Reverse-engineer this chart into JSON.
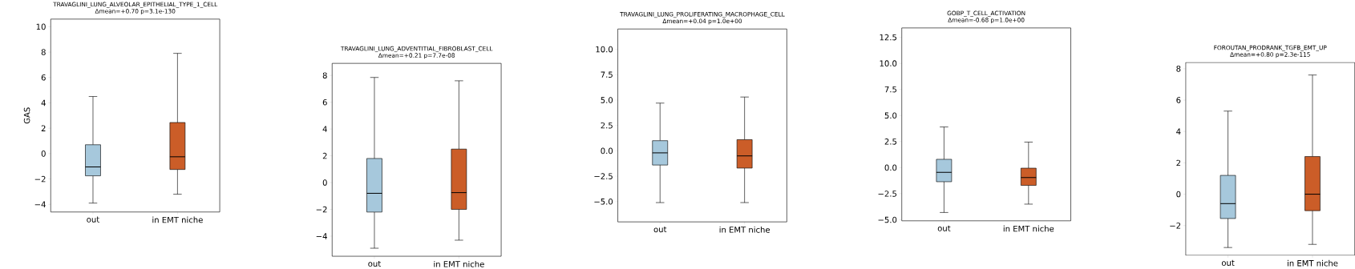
{
  "chart_data": [
    {
      "type": "box",
      "title": "TRAVAGLINI_LUNG_ALVEOLAR_EPITHELIAL_TYPE_1_CELL",
      "subtitle": "Δmean=+0.70  p=3.1e-130",
      "ylabel": "GAS",
      "categories": [
        "out",
        "in EMT niche"
      ],
      "colors": [
        "#a6c8dc",
        "#cb5d28"
      ],
      "ylim": [
        -4.6,
        10.6
      ],
      "yticks": [
        {
          "value": -4,
          "label": "−4"
        },
        {
          "value": -2,
          "label": "−2"
        },
        0,
        2,
        4,
        6,
        8,
        10
      ],
      "boxes": [
        {
          "low": -3.9,
          "q1": -1.75,
          "median": -1.05,
          "q3": 0.7,
          "high": 4.5
        },
        {
          "low": -3.2,
          "q1": -1.25,
          "median": -0.25,
          "q3": 2.45,
          "high": 7.9
        }
      ]
    },
    {
      "type": "box",
      "title": "TRAVAGLINI_LUNG_ADVENTITIAL_FIBROBLAST_CELL",
      "subtitle": "Δmean=+0.21  p=7.7e-08",
      "categories": [
        "out",
        "in EMT niche"
      ],
      "colors": [
        "#a6c8dc",
        "#cb5d28"
      ],
      "ylim": [
        -5.5,
        8.9
      ],
      "yticks": [
        {
          "value": -4,
          "label": "−4"
        },
        {
          "value": -2,
          "label": "−2"
        },
        0,
        2,
        4,
        6,
        8
      ],
      "boxes": [
        {
          "low": -4.9,
          "q1": -2.2,
          "median": -0.8,
          "q3": 1.8,
          "high": 7.85
        },
        {
          "low": -4.3,
          "q1": -2.0,
          "median": -0.75,
          "q3": 2.5,
          "high": 7.6
        }
      ]
    },
    {
      "type": "box",
      "title": "TRAVAGLINI_LUNG_PROLIFERATING_MACROPHAGE_CELL",
      "subtitle": "Δmean=+0.04  p=1.0e+00",
      "categories": [
        "out",
        "in EMT niche"
      ],
      "colors": [
        "#a6c8dc",
        "#cb5d28"
      ],
      "ylim": [
        -7.0,
        12.0
      ],
      "yticks": [
        {
          "value": -5,
          "label": "−5.0"
        },
        {
          "value": -2.5,
          "label": "−2.5"
        },
        {
          "value": 0,
          "label": "0.0"
        },
        2.5,
        {
          "value": 5,
          "label": "5.0"
        },
        7.5,
        {
          "value": 10,
          "label": "10.0"
        }
      ],
      "boxes": [
        {
          "low": -5.1,
          "q1": -1.4,
          "median": -0.2,
          "q3": 1.0,
          "high": 4.7
        },
        {
          "low": -5.1,
          "q1": -1.7,
          "median": -0.5,
          "q3": 1.1,
          "high": 5.3
        }
      ]
    },
    {
      "type": "box",
      "title": "GOBP_T_CELL_ACTIVATION",
      "subtitle": "Δmean=-0.68  p=1.0e+00",
      "categories": [
        "out",
        "in EMT niche"
      ],
      "colors": [
        "#a6c8dc",
        "#cb5d28"
      ],
      "ylim": [
        -5.1,
        13.4
      ],
      "yticks": [
        {
          "value": -5,
          "label": "−5.0"
        },
        {
          "value": -2.5,
          "label": "−2.5"
        },
        {
          "value": 0,
          "label": "0.0"
        },
        2.5,
        {
          "value": 5,
          "label": "5.0"
        },
        7.5,
        {
          "value": 10,
          "label": "10.0"
        },
        12.5
      ],
      "boxes": [
        {
          "low": -4.3,
          "q1": -1.35,
          "median": -0.45,
          "q3": 0.8,
          "high": 3.9
        },
        {
          "low": -3.5,
          "q1": -1.7,
          "median": -0.95,
          "q3": -0.05,
          "high": 2.45
        }
      ]
    },
    {
      "type": "box",
      "title": "FOROUTAN_PRODRANK_TGFB_EMT_UP",
      "subtitle": "Δmean=+0.80  p=2.3e-115",
      "categories": [
        "out",
        "in EMT niche"
      ],
      "colors": [
        "#a6c8dc",
        "#cb5d28"
      ],
      "ylim": [
        -3.9,
        8.4
      ],
      "yticks": [
        {
          "value": -2,
          "label": "−2"
        },
        0,
        2,
        4,
        6,
        8
      ],
      "boxes": [
        {
          "low": -3.4,
          "q1": -1.55,
          "median": -0.6,
          "q3": 1.2,
          "high": 5.3
        },
        {
          "low": -3.2,
          "q1": -1.05,
          "median": 0.0,
          "q3": 2.4,
          "high": 7.6
        }
      ]
    }
  ]
}
